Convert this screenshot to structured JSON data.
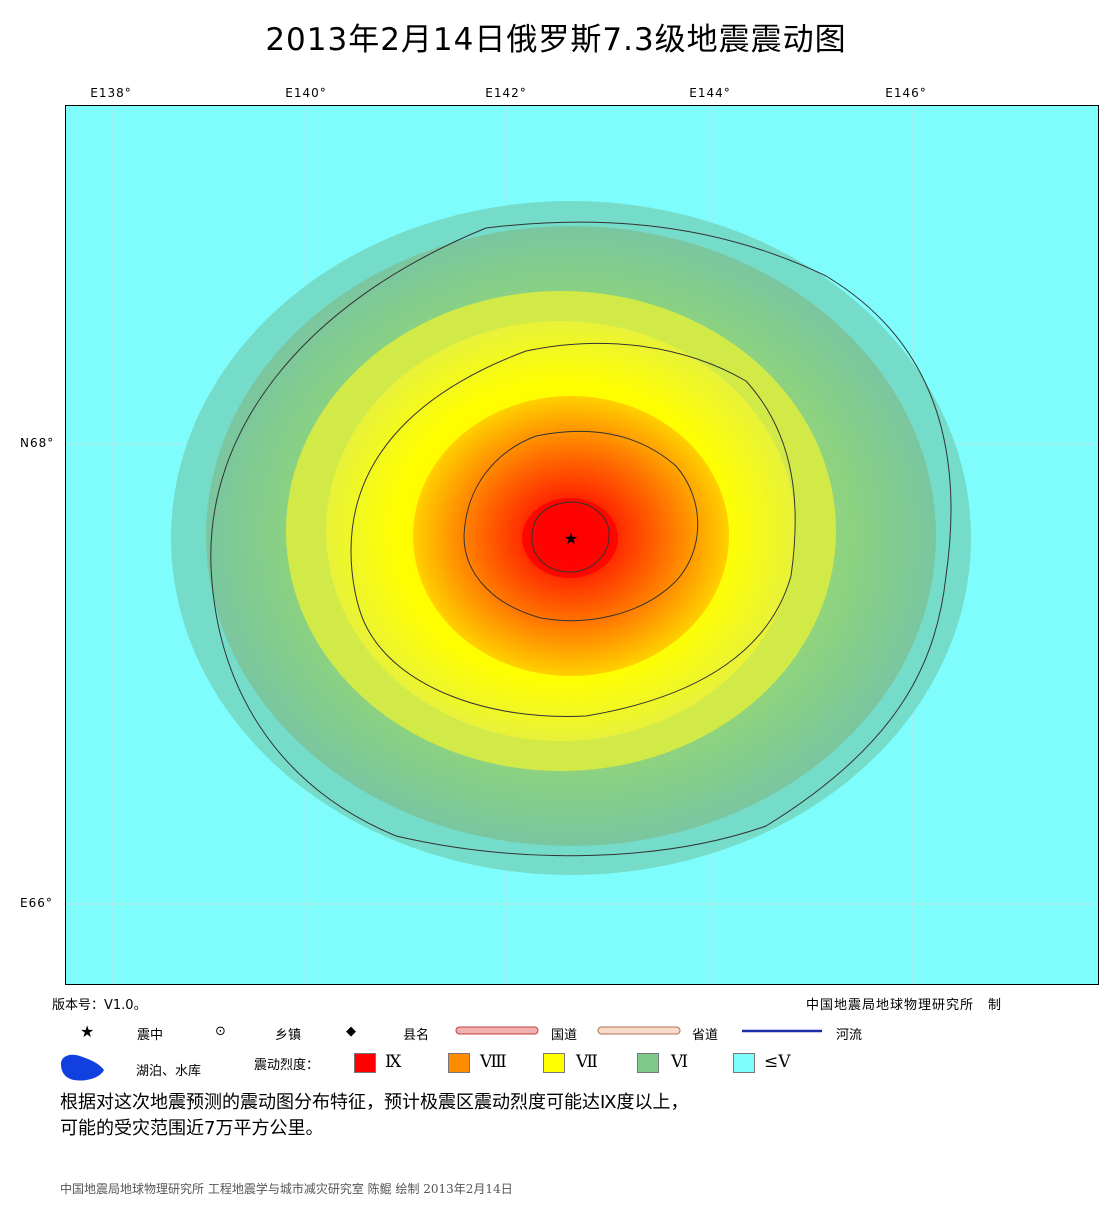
{
  "title": "2013年2月14日俄罗斯7.3级地震震动图",
  "axes": {
    "top_ticks": [
      "E138°",
      "E140°",
      "E142°",
      "E144°",
      "E146°"
    ],
    "left_ticks": [
      "N68°",
      "E66°"
    ]
  },
  "map": {
    "epicenter_symbol": "★",
    "intensity_colors": {
      "IX": "#ff0000",
      "VIII": "#ff8c00",
      "VII": "#ffff00",
      "VI": "#7ec98a",
      "V_or_less": "#7ffcfc"
    }
  },
  "version_label": "版本号：V1.0。",
  "maker_label": "中国地震局地球物理研究所　制",
  "legend": {
    "epicenter": {
      "icon": "star-icon",
      "label": "震中"
    },
    "town": {
      "icon": "circle-dot-icon",
      "label": "乡镇"
    },
    "county": {
      "icon": "diamond-icon",
      "label": "县名"
    },
    "national_road": {
      "label": "国道",
      "color": "#e88080"
    },
    "provincial_road": {
      "label": "省道",
      "color": "#e8b090"
    },
    "river": {
      "label": "河流",
      "color": "#1b2fa8"
    },
    "lake": {
      "label": "湖泊、水库",
      "color": "#1040e0"
    },
    "intensity_title": "震动烈度：",
    "intensity_items": [
      {
        "label": "Ⅸ",
        "color": "#ff0000"
      },
      {
        "label": "Ⅷ",
        "color": "#ff8c00"
      },
      {
        "label": "Ⅶ",
        "color": "#ffff00"
      },
      {
        "label": "Ⅵ",
        "color": "#7ec98a"
      },
      {
        "label": "≤Ⅴ",
        "color": "#7ffcfc"
      }
    ]
  },
  "note_line1": "根据对这次地震预测的震动图分布特征，预计极震区震动烈度可能达Ⅸ度以上，",
  "note_line2": "可能的受灾范围近7万平方公里。",
  "footer": "中国地震局地球物理研究所 工程地震学与城市减灾研究室  陈鲲 绘制 2013年2月14日"
}
